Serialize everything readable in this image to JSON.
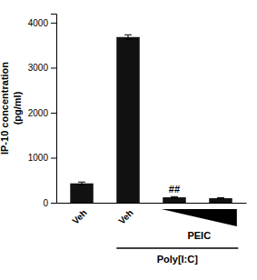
{
  "chart_data": {
    "type": "bar",
    "categories": [
      "Veh",
      "Veh",
      null,
      null
    ],
    "values": [
      430,
      3680,
      120,
      100
    ],
    "errors": [
      30,
      50,
      15,
      12
    ],
    "color": "#111111",
    "ylabel": "IP-10 concentration\n(pg/ml)",
    "ylim": [
      0,
      4200
    ],
    "yticks": [
      0,
      1000,
      2000,
      3000,
      4000
    ],
    "annotations": [
      "##",
      "PEIC",
      "Poly[I:C]"
    ],
    "grid": false
  }
}
